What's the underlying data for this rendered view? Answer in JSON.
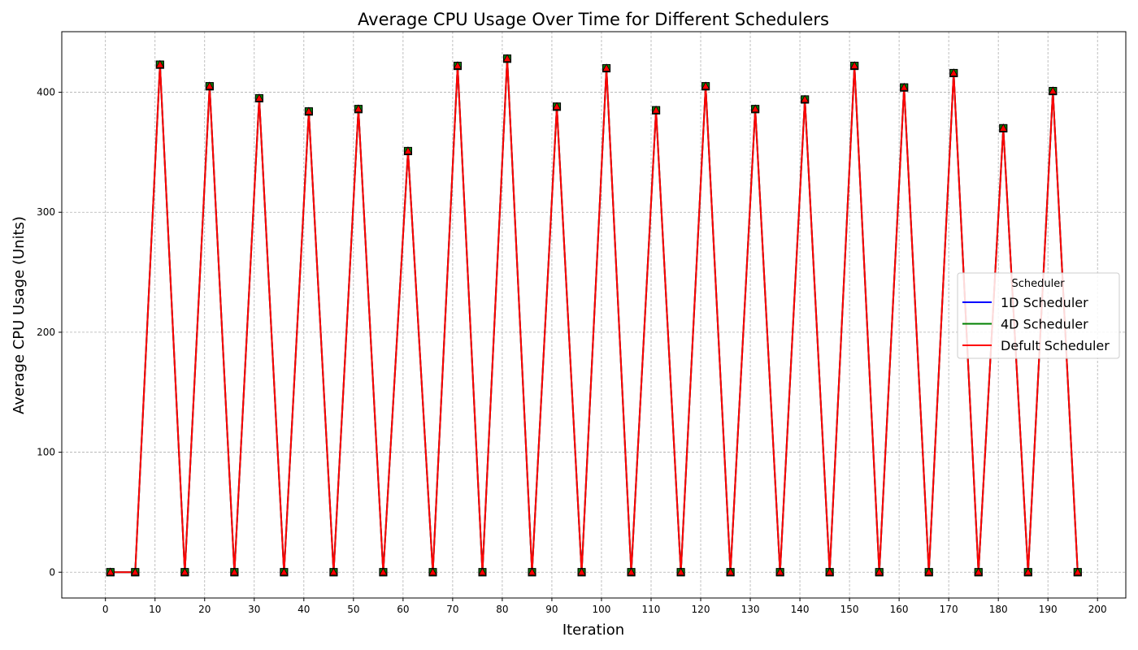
{
  "chart_data": {
    "type": "line",
    "title": "Average CPU Usage Over Time for Different Schedulers",
    "xlabel": "Iteration",
    "ylabel": "Average CPU Usage (Units)",
    "xlim": [
      -8.8,
      205.7
    ],
    "ylim": [
      -21.5,
      450.5
    ],
    "x_ticks": [
      0,
      10,
      20,
      30,
      40,
      50,
      60,
      70,
      80,
      90,
      100,
      110,
      120,
      130,
      140,
      150,
      160,
      170,
      180,
      190,
      200
    ],
    "y_ticks": [
      0,
      100,
      200,
      300,
      400
    ],
    "grid": true,
    "legend": {
      "title": "Scheduler",
      "placement": "center-right"
    },
    "x": [
      1,
      6,
      11,
      16,
      21,
      26,
      31,
      36,
      41,
      46,
      51,
      56,
      61,
      66,
      71,
      76,
      81,
      86,
      91,
      96,
      101,
      106,
      111,
      116,
      121,
      126,
      131,
      136,
      141,
      146,
      151,
      156,
      161,
      166,
      171,
      176,
      181,
      186,
      191,
      196
    ],
    "series": [
      {
        "name": "1D Scheduler",
        "color": "#0000ff",
        "marker": "square",
        "marker_fill": "#0000ff",
        "values": [
          0,
          0,
          423,
          0,
          405,
          0,
          395,
          0,
          384,
          0,
          386,
          0,
          351,
          0,
          422,
          0,
          428,
          0,
          388,
          0,
          420,
          0,
          385,
          0,
          405,
          0,
          386,
          0,
          394,
          0,
          422,
          0,
          404,
          0,
          416,
          0,
          370,
          0,
          401,
          0
        ]
      },
      {
        "name": "4D Scheduler",
        "color": "#008000",
        "marker": "square",
        "marker_fill": "#008000",
        "values": [
          0,
          0,
          423,
          0,
          405,
          0,
          395,
          0,
          384,
          0,
          386,
          0,
          351,
          0,
          422,
          0,
          428,
          0,
          388,
          0,
          420,
          0,
          385,
          0,
          405,
          0,
          386,
          0,
          394,
          0,
          422,
          0,
          404,
          0,
          416,
          0,
          370,
          0,
          401,
          0
        ]
      },
      {
        "name": "Defult Scheduler",
        "color": "#ff0000",
        "marker": "triangle",
        "marker_fill": "#ff0000",
        "values": [
          0,
          0,
          423,
          0,
          405,
          0,
          395,
          0,
          384,
          0,
          386,
          0,
          351,
          0,
          422,
          0,
          428,
          0,
          388,
          0,
          420,
          0,
          385,
          0,
          405,
          0,
          386,
          0,
          394,
          0,
          422,
          0,
          404,
          0,
          416,
          0,
          370,
          0,
          401,
          0
        ]
      }
    ]
  }
}
